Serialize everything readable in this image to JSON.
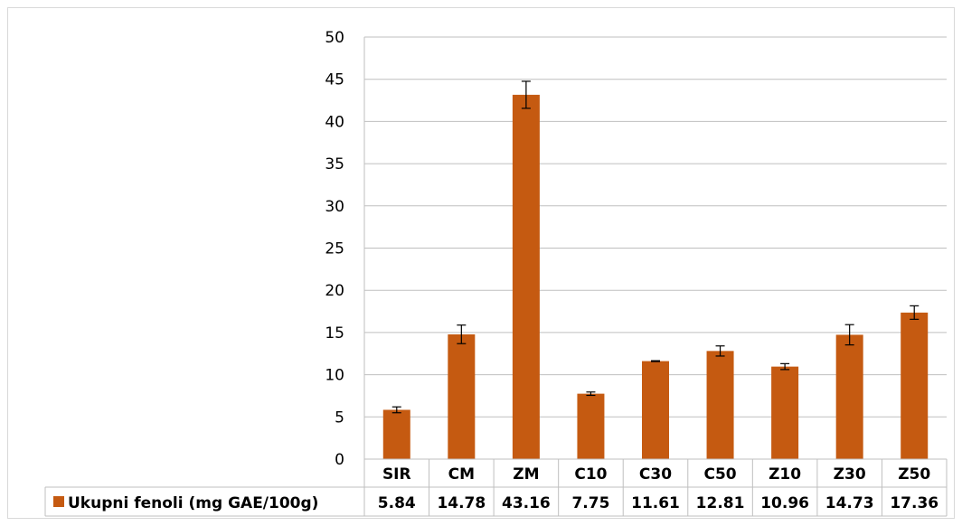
{
  "chart_data": {
    "type": "bar",
    "title": "",
    "xlabel": "",
    "ylabel": "",
    "ylim": [
      0,
      50
    ],
    "yticks": [
      0,
      5,
      10,
      15,
      20,
      25,
      30,
      35,
      40,
      45,
      50
    ],
    "grid": true,
    "legend": "data-table",
    "categories": [
      "SIR",
      "CM",
      "ZM",
      "C10",
      "C30",
      "C50",
      "Z10",
      "Z30",
      "Z50"
    ],
    "series": [
      {
        "name": "Ukupni fenoli (mg GAE/100g)",
        "color": "#c55a11",
        "values": [
          5.84,
          14.78,
          43.16,
          7.75,
          11.61,
          12.81,
          10.96,
          14.73,
          17.36
        ],
        "value_labels": [
          "5.84",
          "14.78",
          "43.16",
          "7.75",
          "11.61",
          "12.81",
          "10.96",
          "14.73",
          "17.36"
        ],
        "error": [
          0.35,
          1.1,
          1.6,
          0.2,
          0.05,
          0.6,
          0.35,
          1.2,
          0.8
        ]
      }
    ]
  }
}
